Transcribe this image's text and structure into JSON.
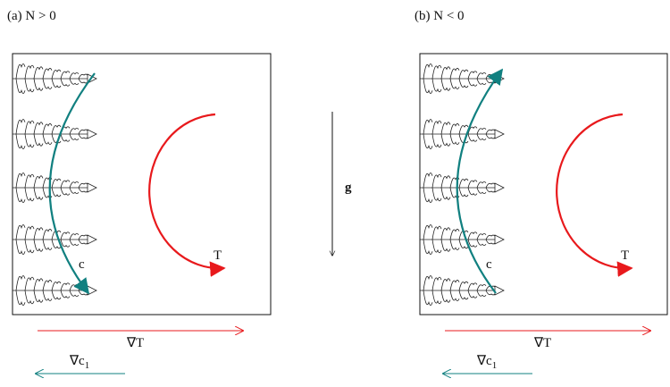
{
  "panels": [
    {
      "title": "(a) N > 0",
      "temperature_label": "T",
      "concentration_label": "c",
      "temperature_gradient_label": "∇T",
      "concentration_gradient_label": {
        "text": "∇c",
        "subscript": "1"
      }
    },
    {
      "title": "(b) N < 0",
      "temperature_label": "T",
      "concentration_label": "c",
      "temperature_gradient_label": "∇T",
      "concentration_gradient_label": {
        "text": "∇c",
        "subscript": "1"
      }
    }
  ],
  "gravity_label": "g"
}
